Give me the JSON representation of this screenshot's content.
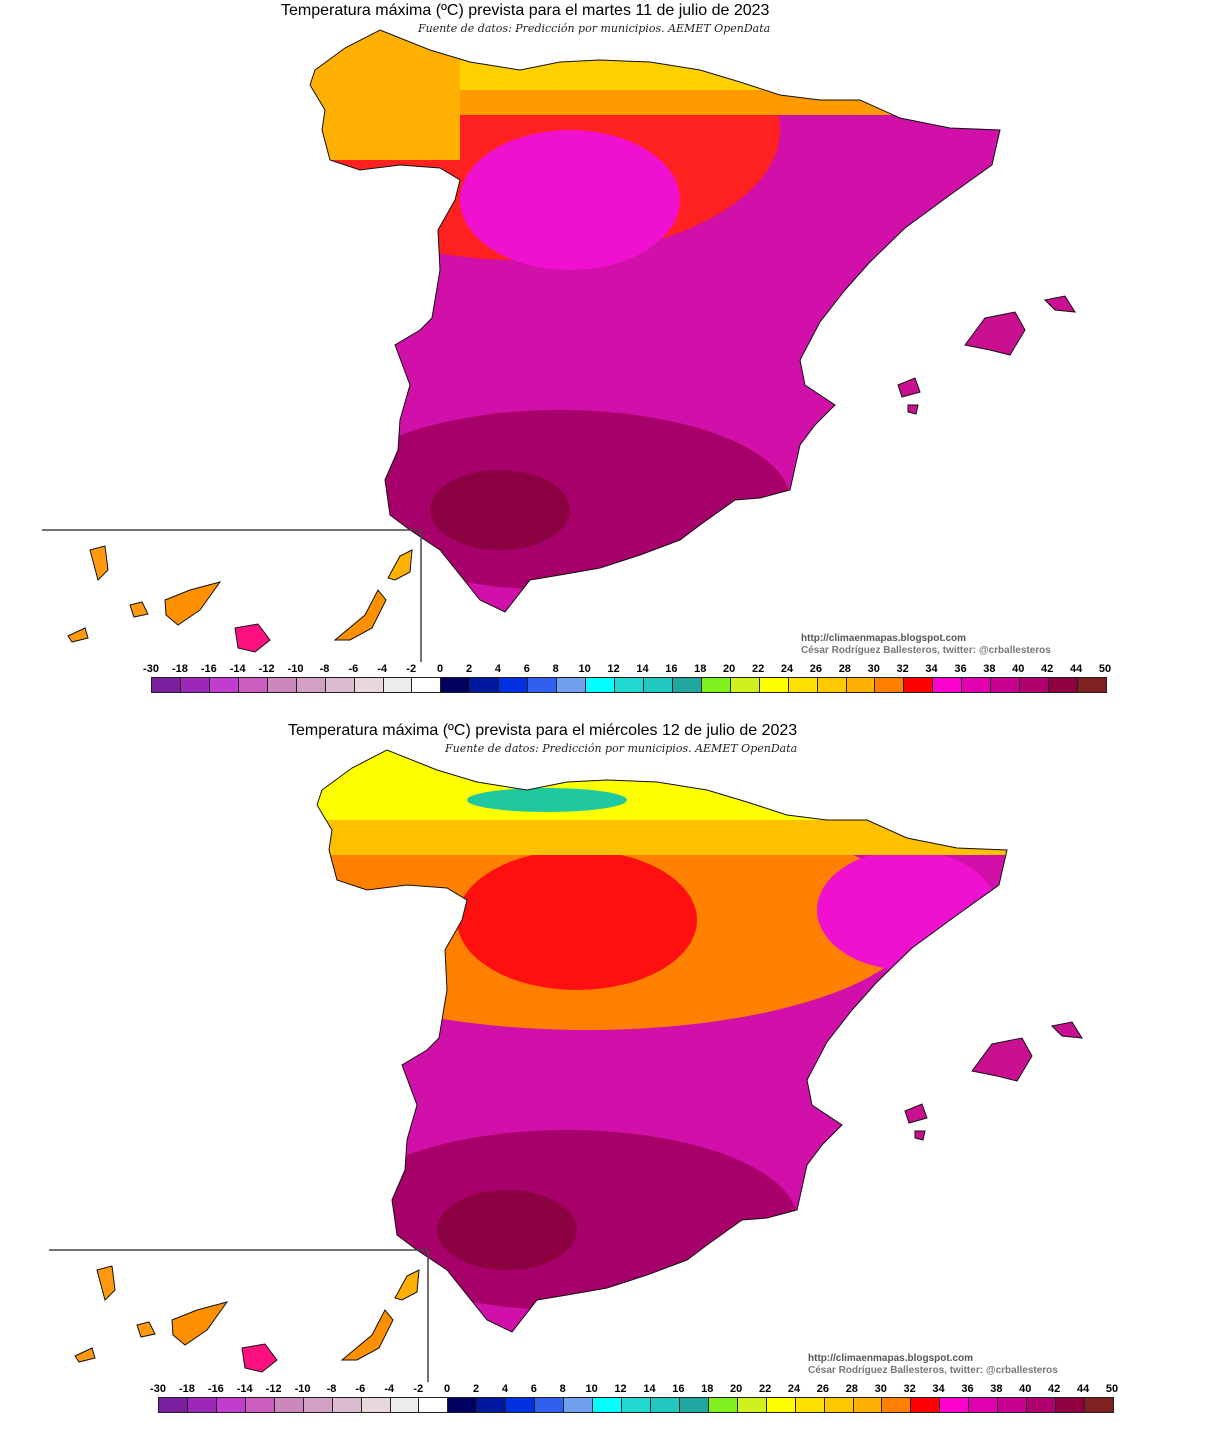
{
  "maps": [
    {
      "title": "Temperatura máxima (ºC) prevista para el martes 11 de julio de 2023",
      "source": "Fuente de datos: Predicción por municipios. AEMET OpenData"
    },
    {
      "title": "Temperatura máxima (ºC) prevista para el miércoles 12 de julio de 2023",
      "source": "Fuente de datos: Predicción por municipios. AEMET OpenData"
    }
  ],
  "credit": {
    "url": "http://climaenmapas.blogspot.com",
    "author": "César Rodríguez Ballesteros, twitter: @crballesteros"
  },
  "legend": {
    "labels": [
      "-30",
      "-18",
      "-16",
      "-14",
      "-12",
      "-10",
      "-8",
      "-6",
      "-4",
      "-2",
      "0",
      "2",
      "4",
      "6",
      "8",
      "10",
      "12",
      "14",
      "16",
      "18",
      "20",
      "22",
      "24",
      "26",
      "28",
      "30",
      "32",
      "34",
      "36",
      "38",
      "40",
      "42",
      "44",
      "50"
    ],
    "colors": [
      "#7b1fa0",
      "#9c27b8",
      "#c23cd0",
      "#cc5cc0",
      "#cc88bc",
      "#d4a0c4",
      "#dcbcd0",
      "#e8d8dc",
      "#ececec",
      "#ffffff",
      "#000060",
      "#0018a0",
      "#0030e0",
      "#3060f0",
      "#70a0f0",
      "#00ffff",
      "#20d8d0",
      "#20c8c0",
      "#20a8a0",
      "#80f020",
      "#d0f020",
      "#ffff00",
      "#ffe000",
      "#ffc800",
      "#ffb000",
      "#ff8000",
      "#ff0000",
      "#ff00d0",
      "#e000b0",
      "#c80090",
      "#b00070",
      "#900040",
      "#802020"
    ]
  }
}
